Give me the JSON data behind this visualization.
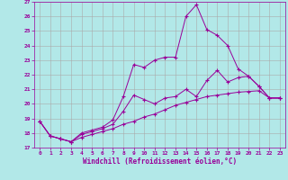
{
  "xlabel": "Windchill (Refroidissement éolien,°C)",
  "bg_color": "#b2e8e8",
  "line_color": "#990099",
  "grid_color": "#aaaaaa",
  "xlim": [
    -0.5,
    23.5
  ],
  "ylim": [
    17,
    27
  ],
  "yticks": [
    17,
    18,
    19,
    20,
    21,
    22,
    23,
    24,
    25,
    26,
    27
  ],
  "xticks": [
    0,
    1,
    2,
    3,
    4,
    5,
    6,
    7,
    8,
    9,
    10,
    11,
    12,
    13,
    14,
    15,
    16,
    17,
    18,
    19,
    20,
    21,
    22,
    23
  ],
  "line1_x": [
    0,
    1,
    2,
    3,
    4,
    5,
    6,
    7,
    8,
    9,
    10,
    11,
    12,
    13,
    14,
    15,
    16,
    17,
    18,
    19,
    20,
    21,
    22,
    23
  ],
  "line1_y": [
    18.8,
    17.8,
    17.6,
    17.4,
    17.7,
    17.9,
    18.1,
    18.3,
    18.6,
    18.8,
    19.1,
    19.3,
    19.6,
    19.9,
    20.1,
    20.3,
    20.5,
    20.6,
    20.7,
    20.8,
    20.85,
    20.9,
    20.4,
    20.4
  ],
  "line2_x": [
    0,
    1,
    2,
    3,
    4,
    5,
    6,
    7,
    8,
    9,
    10,
    11,
    12,
    13,
    14,
    15,
    16,
    17,
    18,
    19,
    20,
    21,
    22,
    23
  ],
  "line2_y": [
    18.8,
    17.8,
    17.6,
    17.4,
    17.9,
    18.1,
    18.3,
    18.6,
    19.5,
    20.6,
    20.3,
    20.0,
    20.4,
    20.5,
    21.0,
    20.5,
    21.6,
    22.3,
    21.5,
    21.8,
    21.9,
    21.2,
    20.4,
    20.4
  ],
  "line3_x": [
    0,
    1,
    2,
    3,
    4,
    5,
    6,
    7,
    8,
    9,
    10,
    11,
    12,
    13,
    14,
    15,
    16,
    17,
    18,
    19,
    20,
    21,
    22,
    23
  ],
  "line3_y": [
    18.8,
    17.8,
    17.6,
    17.4,
    18.0,
    18.2,
    18.4,
    18.9,
    20.5,
    22.7,
    22.5,
    23.0,
    23.2,
    23.2,
    26.0,
    26.8,
    25.1,
    24.7,
    24.0,
    22.4,
    21.9,
    21.2,
    20.4,
    20.4
  ]
}
